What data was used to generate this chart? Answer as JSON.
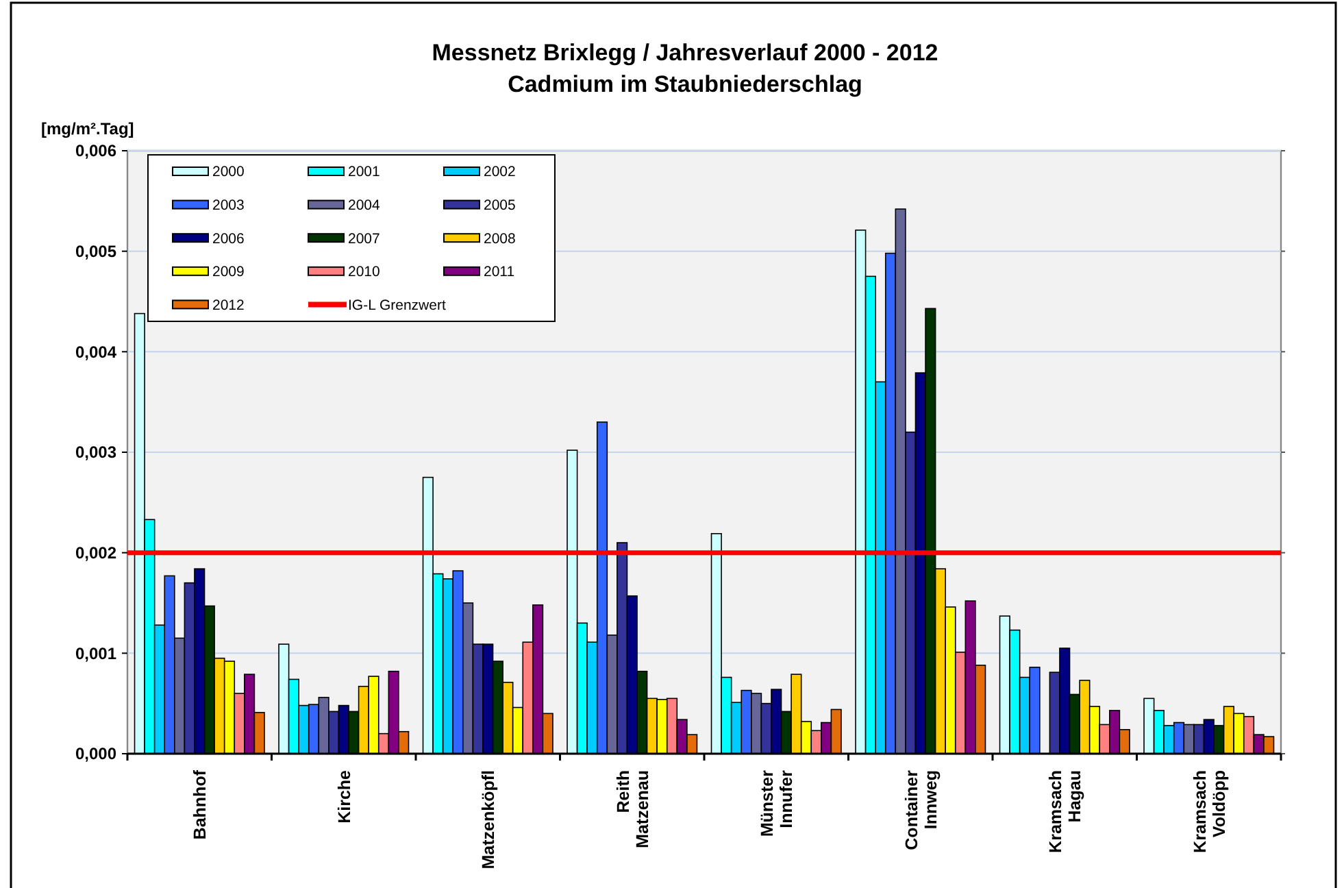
{
  "chart_data": {
    "type": "bar",
    "title": "Messnetz Brixlegg / Jahresverlauf 2000 - 2012",
    "subtitle": "Cadmium im Staubniederschlag",
    "ylabel": "[mg/m².Tag]",
    "categories": [
      "Bahnhof",
      "Kirche",
      "Matzenköpfl",
      "Reith Matzenau",
      "Münster Innufer",
      "Container Innweg",
      "Kramsach Hagau",
      "Kramsach Voldöpp"
    ],
    "series": [
      {
        "name": "2000",
        "color": "#ccffff",
        "values": [
          0.00438,
          0.00109,
          0.00275,
          0.00302,
          0.00219,
          0.00521,
          0.00137,
          0.00055
        ]
      },
      {
        "name": "2001",
        "color": "#00ffff",
        "values": [
          0.00233,
          0.00074,
          0.00179,
          0.0013,
          0.00076,
          0.00475,
          0.00123,
          0.00043
        ]
      },
      {
        "name": "2002",
        "color": "#00ccff",
        "values": [
          0.00128,
          0.00048,
          0.00174,
          0.00111,
          0.00051,
          0.0037,
          0.00076,
          0.00028
        ]
      },
      {
        "name": "2003",
        "color": "#3366ff",
        "values": [
          0.00177,
          0.00049,
          0.00182,
          0.0033,
          0.00063,
          0.00498,
          0.00086,
          0.00031
        ]
      },
      {
        "name": "2004",
        "color": "#666699",
        "values": [
          0.00115,
          0.00056,
          0.0015,
          0.00118,
          0.0006,
          0.00542,
          null,
          0.00029
        ]
      },
      {
        "name": "2005",
        "color": "#333399",
        "values": [
          0.0017,
          0.00042,
          0.00109,
          0.0021,
          0.0005,
          0.0032,
          0.00081,
          0.00029
        ]
      },
      {
        "name": "2006",
        "color": "#000080",
        "values": [
          0.00184,
          0.00048,
          0.00109,
          0.00157,
          0.00064,
          0.00379,
          0.00105,
          0.00034
        ]
      },
      {
        "name": "2007",
        "color": "#003300",
        "values": [
          0.00147,
          0.00042,
          0.00092,
          0.00082,
          0.00042,
          0.00443,
          0.00059,
          0.00028
        ]
      },
      {
        "name": "2008",
        "color": "#ffcc00",
        "values": [
          0.00095,
          0.00067,
          0.00071,
          0.00055,
          0.00079,
          0.00184,
          0.00073,
          0.00047
        ]
      },
      {
        "name": "2009",
        "color": "#ffff00",
        "values": [
          0.00092,
          0.00077,
          0.00046,
          0.00054,
          0.00032,
          0.00146,
          0.00047,
          0.0004
        ]
      },
      {
        "name": "2010",
        "color": "#ff8080",
        "values": [
          0.0006,
          0.0002,
          0.00111,
          0.00055,
          0.00023,
          0.00101,
          0.00029,
          0.00037
        ]
      },
      {
        "name": "2011",
        "color": "#800080",
        "values": [
          0.00079,
          0.00082,
          0.00148,
          0.00034,
          0.00031,
          0.00152,
          0.00043,
          0.00019
        ]
      },
      {
        "name": "2012",
        "color": "#e46c0a",
        "values": [
          0.00041,
          0.00022,
          0.0004,
          0.00019,
          0.00044,
          0.00088,
          0.00024,
          0.00017
        ]
      }
    ],
    "ref_lines": [
      {
        "axis": "y",
        "value": 0.002,
        "label": "IG-L Grenzwert",
        "color": "#ff0000"
      }
    ],
    "ylim": [
      0,
      0.006
    ],
    "yticks": [
      {
        "value": 0,
        "label": "0,000"
      },
      {
        "value": 0.001,
        "label": "0,001"
      },
      {
        "value": 0.002,
        "label": "0,002"
      },
      {
        "value": 0.003,
        "label": "0,003"
      },
      {
        "value": 0.004,
        "label": "0,004"
      },
      {
        "value": 0.005,
        "label": "0,005"
      },
      {
        "value": 0.006,
        "label": "0,006"
      }
    ],
    "grid": "y",
    "legend": "top left"
  }
}
